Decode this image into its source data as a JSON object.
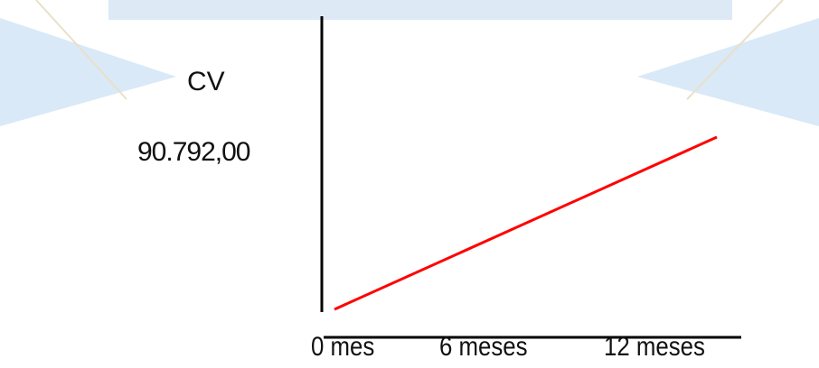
{
  "chart_data": {
    "type": "line",
    "title": "",
    "xlabel": "",
    "ylabel": "CV",
    "y_annotation": "90.792,00",
    "categories": [
      "0 mes",
      "6 meses",
      "12 meses"
    ],
    "x": [
      0,
      12
    ],
    "series": [
      {
        "values": [
          0,
          90792
        ]
      }
    ],
    "ylim": [
      0,
      90792
    ],
    "grid": false,
    "legend": "none",
    "colors": {
      "line": "#ff0000",
      "axis": "#000000",
      "watermark": "#cfe3f5"
    }
  }
}
